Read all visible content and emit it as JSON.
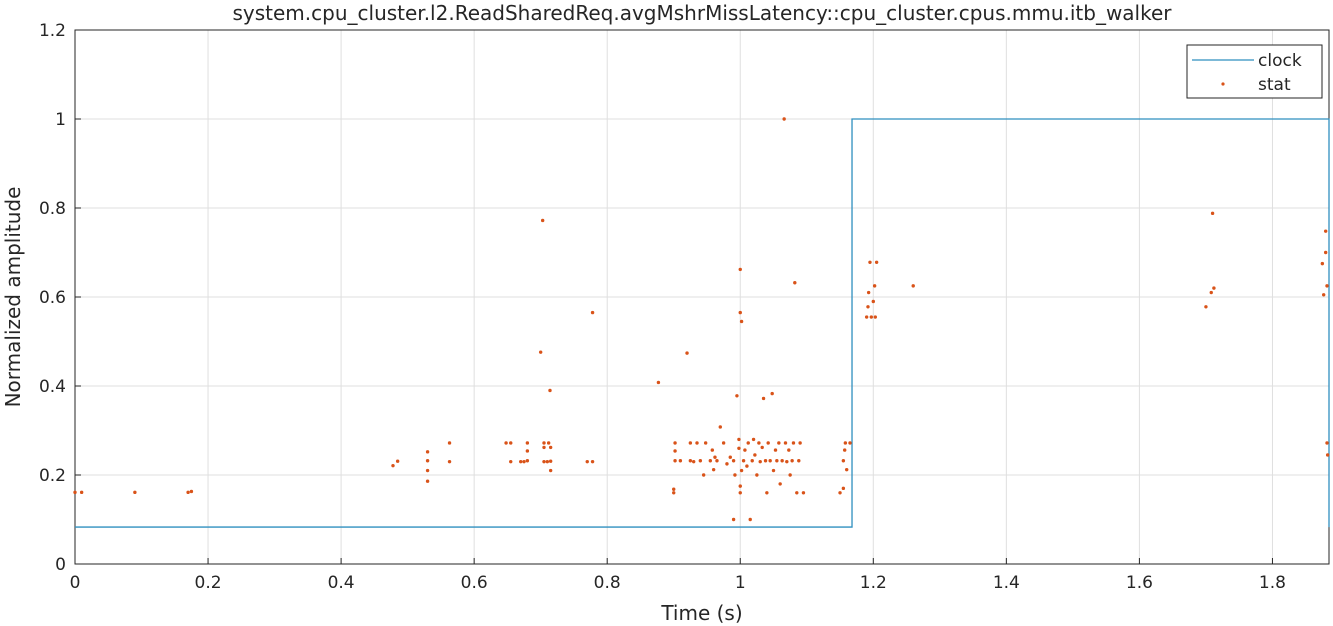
{
  "chart_data": {
    "type": "scatter",
    "title": "system.cpu_cluster.l2.ReadSharedReq.avgMshrMissLatency::cpu_cluster.cpus.mmu.itb_walker",
    "xlabel": "Time (s)",
    "ylabel": "Normalized amplitude",
    "xlim": [
      0,
      1.885
    ],
    "ylim": [
      0,
      1.2
    ],
    "xticks": [
      0,
      0.2,
      0.4,
      0.6,
      0.8,
      1,
      1.2,
      1.4,
      1.6,
      1.8
    ],
    "xtick_labels": [
      "0",
      "0.2",
      "0.4",
      "0.6",
      "0.8",
      "1",
      "1.2",
      "1.4",
      "1.6",
      "1.8"
    ],
    "yticks": [
      0,
      0.2,
      0.4,
      0.6,
      0.8,
      1,
      1.2
    ],
    "ytick_labels": [
      "0",
      "0.2",
      "0.4",
      "0.6",
      "0.8",
      "1",
      "1.2"
    ],
    "grid": true,
    "legend_position": "top-right",
    "series": [
      {
        "name": "clock",
        "kind": "line",
        "color": "#2f8fbf",
        "x": [
          0,
          1.168,
          1.168,
          1.885,
          1.885
        ],
        "y": [
          0.083,
          0.083,
          1.0,
          1.0,
          0.083
        ]
      },
      {
        "name": "stat",
        "kind": "markers",
        "color": "#d95319",
        "points": [
          [
            0.0,
            0.161
          ],
          [
            0.01,
            0.161
          ],
          [
            0.09,
            0.161
          ],
          [
            0.17,
            0.161
          ],
          [
            0.175,
            0.163
          ],
          [
            0.478,
            0.221
          ],
          [
            0.485,
            0.231
          ],
          [
            0.53,
            0.186
          ],
          [
            0.53,
            0.21
          ],
          [
            0.53,
            0.232
          ],
          [
            0.53,
            0.252
          ],
          [
            0.563,
            0.23
          ],
          [
            0.563,
            0.272
          ],
          [
            0.648,
            0.272
          ],
          [
            0.655,
            0.272
          ],
          [
            0.655,
            0.23
          ],
          [
            0.67,
            0.23
          ],
          [
            0.675,
            0.23
          ],
          [
            0.68,
            0.232
          ],
          [
            0.68,
            0.254
          ],
          [
            0.68,
            0.272
          ],
          [
            0.7,
            0.476
          ],
          [
            0.703,
            0.772
          ],
          [
            0.705,
            0.23
          ],
          [
            0.705,
            0.262
          ],
          [
            0.705,
            0.272
          ],
          [
            0.71,
            0.23
          ],
          [
            0.712,
            0.272
          ],
          [
            0.714,
            0.39
          ],
          [
            0.715,
            0.21
          ],
          [
            0.715,
            0.231
          ],
          [
            0.715,
            0.262
          ],
          [
            0.77,
            0.23
          ],
          [
            0.778,
            0.23
          ],
          [
            0.778,
            0.565
          ],
          [
            0.877,
            0.408
          ],
          [
            0.9,
            0.16
          ],
          [
            0.9,
            0.168
          ],
          [
            0.902,
            0.232
          ],
          [
            0.902,
            0.254
          ],
          [
            0.902,
            0.272
          ],
          [
            0.91,
            0.232
          ],
          [
            0.92,
            0.474
          ],
          [
            0.925,
            0.232
          ],
          [
            0.925,
            0.272
          ],
          [
            0.93,
            0.23
          ],
          [
            0.935,
            0.272
          ],
          [
            0.94,
            0.232
          ],
          [
            0.945,
            0.2
          ],
          [
            0.948,
            0.272
          ],
          [
            0.955,
            0.232
          ],
          [
            0.958,
            0.256
          ],
          [
            0.96,
            0.212
          ],
          [
            0.962,
            0.24
          ],
          [
            0.965,
            0.232
          ],
          [
            0.97,
            0.308
          ],
          [
            0.975,
            0.272
          ],
          [
            0.98,
            0.225
          ],
          [
            0.985,
            0.24
          ],
          [
            0.99,
            0.1
          ],
          [
            0.99,
            0.232
          ],
          [
            0.992,
            0.2
          ],
          [
            0.995,
            0.378
          ],
          [
            0.998,
            0.26
          ],
          [
            0.998,
            0.28
          ],
          [
            1.0,
            0.662
          ],
          [
            1.0,
            0.565
          ],
          [
            1.002,
            0.545
          ],
          [
            1.0,
            0.16
          ],
          [
            1.0,
            0.175
          ],
          [
            1.002,
            0.21
          ],
          [
            1.005,
            0.232
          ],
          [
            1.007,
            0.256
          ],
          [
            1.01,
            0.22
          ],
          [
            1.012,
            0.272
          ],
          [
            1.015,
            0.1
          ],
          [
            1.018,
            0.232
          ],
          [
            1.02,
            0.28
          ],
          [
            1.022,
            0.245
          ],
          [
            1.025,
            0.2
          ],
          [
            1.028,
            0.272
          ],
          [
            1.03,
            0.23
          ],
          [
            1.033,
            0.262
          ],
          [
            1.035,
            0.372
          ],
          [
            1.038,
            0.232
          ],
          [
            1.04,
            0.16
          ],
          [
            1.042,
            0.272
          ],
          [
            1.045,
            0.232
          ],
          [
            1.048,
            0.383
          ],
          [
            1.05,
            0.21
          ],
          [
            1.053,
            0.256
          ],
          [
            1.055,
            0.232
          ],
          [
            1.058,
            0.272
          ],
          [
            1.06,
            0.18
          ],
          [
            1.063,
            0.232
          ],
          [
            1.066,
            1.0
          ],
          [
            1.068,
            0.272
          ],
          [
            1.07,
            0.23
          ],
          [
            1.073,
            0.256
          ],
          [
            1.075,
            0.2
          ],
          [
            1.078,
            0.232
          ],
          [
            1.08,
            0.272
          ],
          [
            1.082,
            0.632
          ],
          [
            1.085,
            0.16
          ],
          [
            1.088,
            0.232
          ],
          [
            1.09,
            0.272
          ],
          [
            1.095,
            0.16
          ],
          [
            1.15,
            0.16
          ],
          [
            1.155,
            0.17
          ],
          [
            1.155,
            0.232
          ],
          [
            1.157,
            0.256
          ],
          [
            1.158,
            0.272
          ],
          [
            1.16,
            0.212
          ],
          [
            1.165,
            0.272
          ],
          [
            1.19,
            0.555
          ],
          [
            1.192,
            0.578
          ],
          [
            1.193,
            0.61
          ],
          [
            1.195,
            0.678
          ],
          [
            1.197,
            0.555
          ],
          [
            1.2,
            0.59
          ],
          [
            1.202,
            0.625
          ],
          [
            1.203,
            0.555
          ],
          [
            1.205,
            0.678
          ],
          [
            1.26,
            0.625
          ],
          [
            1.7,
            0.578
          ],
          [
            1.708,
            0.61
          ],
          [
            1.71,
            0.788
          ],
          [
            1.712,
            0.62
          ],
          [
            1.875,
            0.675
          ],
          [
            1.877,
            0.605
          ],
          [
            1.88,
            0.748
          ],
          [
            1.88,
            0.7
          ],
          [
            1.882,
            0.625
          ],
          [
            1.882,
            0.272
          ],
          [
            1.883,
            0.245
          ]
        ]
      }
    ]
  }
}
